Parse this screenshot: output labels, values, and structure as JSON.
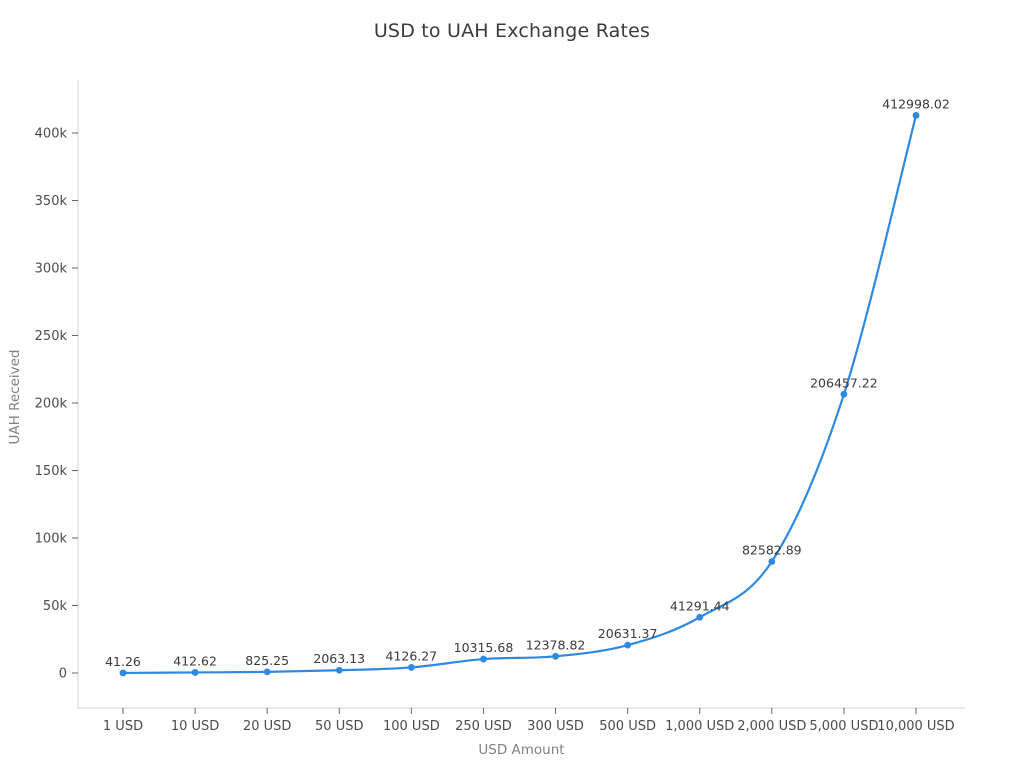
{
  "chart_data": {
    "type": "line",
    "title": "USD to UAH Exchange Rates",
    "xlabel": "USD Amount",
    "ylabel": "UAH Received",
    "categories": [
      "1 USD",
      "10 USD",
      "20 USD",
      "50 USD",
      "100 USD",
      "250 USD",
      "300 USD",
      "500 USD",
      "1,000 USD",
      "2,000 USD",
      "5,000 USD",
      "10,000 USD"
    ],
    "values": [
      41.26,
      412.62,
      825.25,
      2063.13,
      4126.27,
      10315.68,
      12378.82,
      20631.37,
      41291.44,
      82582.89,
      206457.22,
      412998.02
    ],
    "point_labels": [
      "41.26",
      "412.62",
      "825.25",
      "2063.13",
      "4126.27",
      "10315.68",
      "12378.82",
      "20631.37",
      "41291.44",
      "82582.89",
      "206457.22",
      "412998.02"
    ],
    "ylim": [
      0,
      430000
    ],
    "ytick_values": [
      0,
      50000,
      100000,
      150000,
      200000,
      250000,
      300000,
      350000,
      400000
    ],
    "ytick_labels": [
      "0",
      "50k",
      "100k",
      "150k",
      "200k",
      "250k",
      "300k",
      "350k",
      "400k"
    ],
    "grid": false,
    "legend": "none",
    "line_shape": "spline",
    "marker": "circle",
    "colors": {
      "line": "#2f89e0",
      "marker": "#2f89e0",
      "title_text": "#3b3b3b",
      "tick_text": "#4c4c4c",
      "axis_title_text": "#818181",
      "axis_line": "#d9d9d9",
      "tick_mark": "#666666",
      "data_label_text": "#3a3a3a"
    }
  }
}
